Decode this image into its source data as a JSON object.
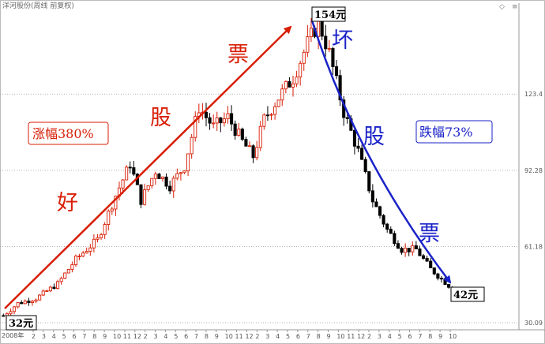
{
  "header": {
    "title": "洋河股份(周线 前复权)",
    "date_label": "2008年"
  },
  "colors": {
    "up": "#d81e06",
    "down": "#000000",
    "red_arrow": "#d81e06",
    "blue_arrow": "#1a22c8",
    "grid": "#999999"
  },
  "annotations": {
    "good_stock": [
      "好",
      "股",
      "票"
    ],
    "bad_stock": [
      "坏",
      "股",
      "票"
    ],
    "rise": "涨幅380%",
    "fall": "跌幅73%",
    "start_price": "32元",
    "peak_price": "154元",
    "end_price": "42元"
  },
  "chart_data": {
    "type": "candlestick",
    "title": "洋河股份(周线 前复权)",
    "y_ticks": [
      30.09,
      61.18,
      92.28,
      123.4
    ],
    "ylim": [
      27.2,
      160.5
    ],
    "x_tick_labels": [
      "2",
      "3",
      "4",
      "5",
      "6",
      "7",
      "8",
      "9",
      "10",
      "11",
      "12",
      "2",
      "3",
      "4",
      "5",
      "6",
      "7",
      "8",
      "9",
      "10",
      "11",
      "12",
      "2",
      "3",
      "4",
      "5",
      "6",
      "7",
      "8",
      "9",
      "10",
      "11",
      "12",
      "2",
      "3",
      "4",
      "5",
      "6",
      "7",
      "8",
      "9",
      "10"
    ],
    "year_markers": [
      "2008年"
    ],
    "weeks": 125,
    "anchors": [
      [
        0,
        33
      ],
      [
        4,
        38
      ],
      [
        9,
        40
      ],
      [
        15,
        46
      ],
      [
        20,
        56
      ],
      [
        26,
        64
      ],
      [
        31,
        82
      ],
      [
        35,
        95
      ],
      [
        38,
        80
      ],
      [
        42,
        92
      ],
      [
        46,
        86
      ],
      [
        50,
        94
      ],
      [
        54,
        118
      ],
      [
        58,
        110
      ],
      [
        62,
        114
      ],
      [
        66,
        104
      ],
      [
        69,
        98
      ],
      [
        72,
        113
      ],
      [
        76,
        122
      ],
      [
        80,
        130
      ],
      [
        84,
        144
      ],
      [
        87,
        153
      ],
      [
        90,
        140
      ],
      [
        94,
        116
      ],
      [
        98,
        100
      ],
      [
        102,
        80
      ],
      [
        106,
        68
      ],
      [
        110,
        60
      ],
      [
        114,
        60
      ],
      [
        118,
        52
      ],
      [
        124,
        44
      ]
    ],
    "start_price": 32,
    "peak_price": 154,
    "end_price": 42,
    "rise_pct": 380,
    "fall_pct": 73
  }
}
